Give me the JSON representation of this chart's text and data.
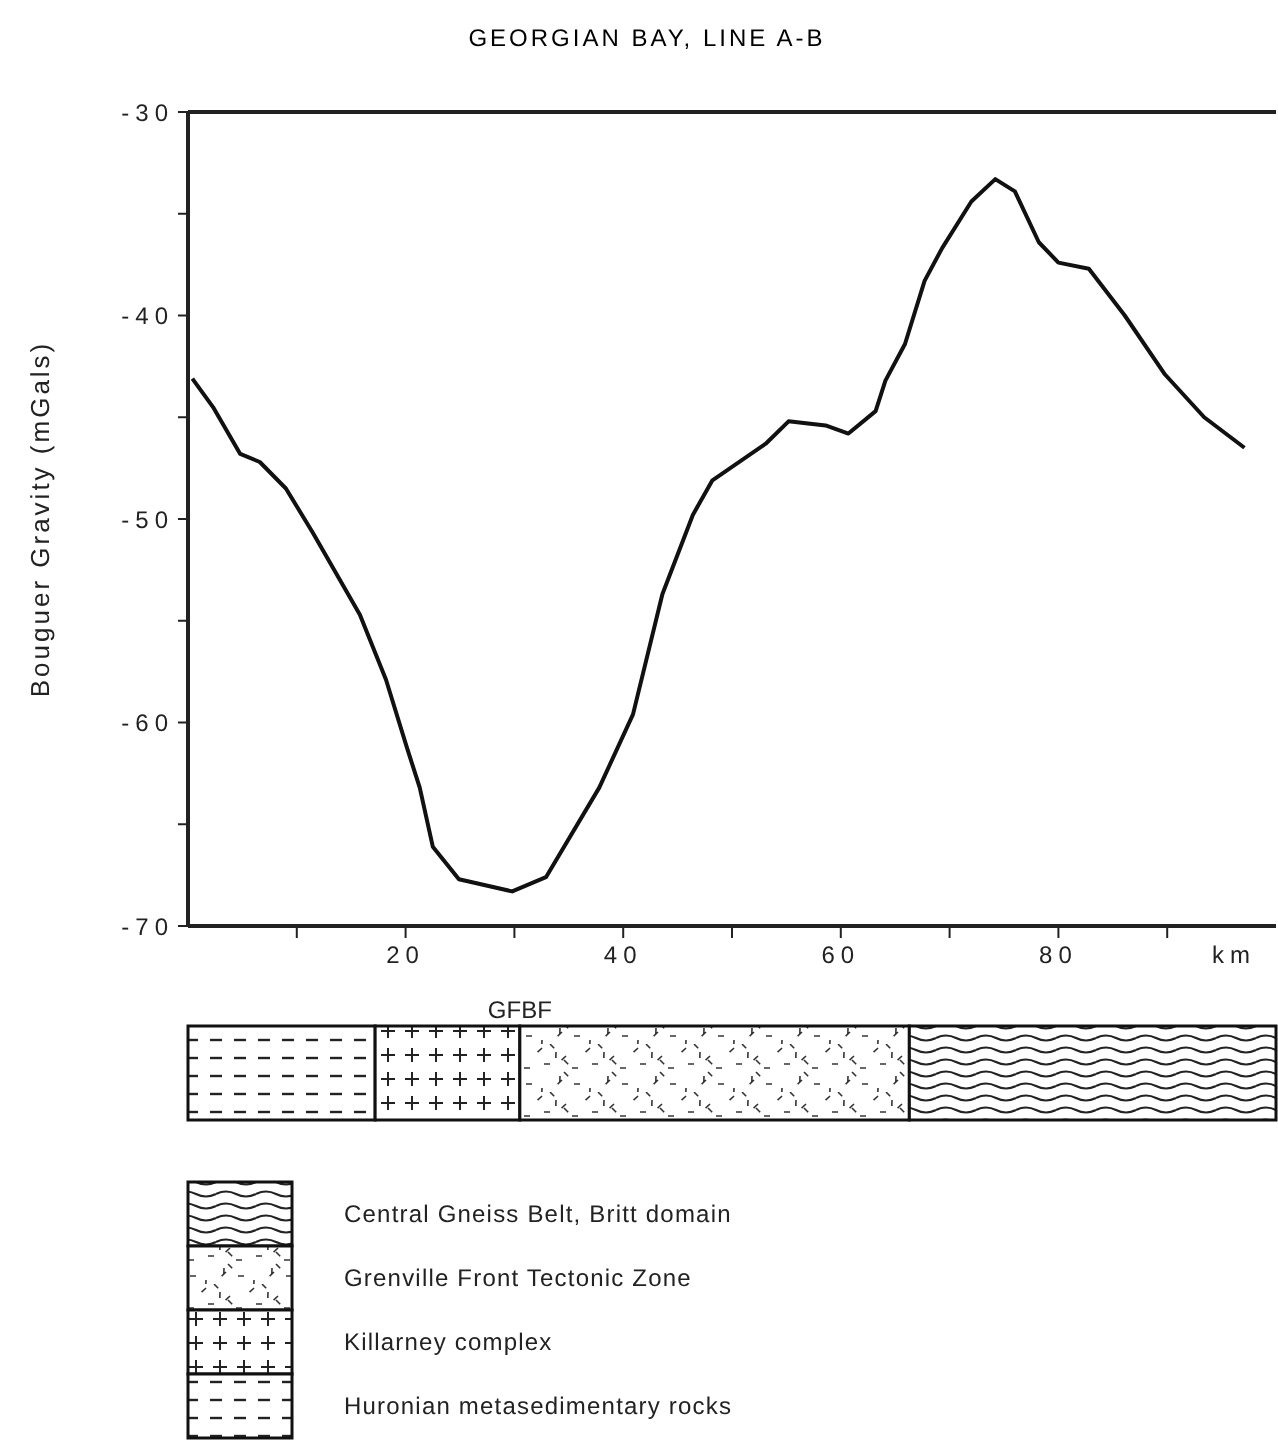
{
  "chart_data": {
    "type": "line",
    "title": "GEORGIAN BAY, LINE A-B",
    "ylabel": "Bouguer Gravity (mGals)",
    "xlabel": "km",
    "x": [
      0.4,
      2.3,
      4.8,
      6.6,
      9.0,
      11.5,
      15.8,
      18.2,
      20.1,
      21.3,
      22.5,
      24.9,
      29.8,
      32.9,
      37.8,
      40.9,
      43.6,
      46.4,
      48.2,
      53.1,
      55.2,
      58.6,
      60.7,
      63.2,
      64.1,
      65.9,
      67.7,
      69.3,
      72.0,
      74.2,
      76.0,
      78.2,
      80.0,
      82.8,
      86.1,
      89.8,
      93.4,
      97.1
    ],
    "series": [
      {
        "color": "#111111",
        "values": [
          -43.1,
          -44.5,
          -46.8,
          -47.2,
          -48.5,
          -50.7,
          -54.7,
          -57.9,
          -61.2,
          -63.2,
          -66.1,
          -67.7,
          -68.3,
          -67.6,
          -63.2,
          -59.6,
          -53.7,
          -49.8,
          -48.1,
          -46.3,
          -45.2,
          -45.4,
          -45.8,
          -44.7,
          -43.2,
          -41.4,
          -38.3,
          -36.7,
          -34.4,
          -33.3,
          -33.9,
          -36.4,
          -37.4,
          -37.7,
          -40.0,
          -42.9,
          -45.0,
          -46.5
        ]
      }
    ],
    "xlim": [
      0,
      100
    ],
    "xticks": [
      {
        "value": 10,
        "label": null
      },
      20,
      {
        "value": 30,
        "label": null
      },
      40,
      {
        "value": 50,
        "label": null
      },
      60,
      {
        "value": 70,
        "label": null
      },
      80,
      {
        "value": 90,
        "label": null
      }
    ],
    "ylim": [
      -70,
      -30
    ],
    "yticks": [
      -70,
      {
        "value": -65,
        "label": null
      },
      -60,
      {
        "value": -55,
        "label": null
      },
      -50,
      {
        "value": -45,
        "label": null
      },
      -40,
      {
        "value": -35,
        "label": null
      },
      -30
    ],
    "grid": false,
    "legend": false,
    "marker": "none",
    "line_style": "solid",
    "annotations": [
      "GFBF",
      "Central Gneiss Belt, Britt domain",
      "Grenville Front Tectonic Zone",
      "Killarney complex",
      "Huronian metasedimentary rocks"
    ]
  }
}
